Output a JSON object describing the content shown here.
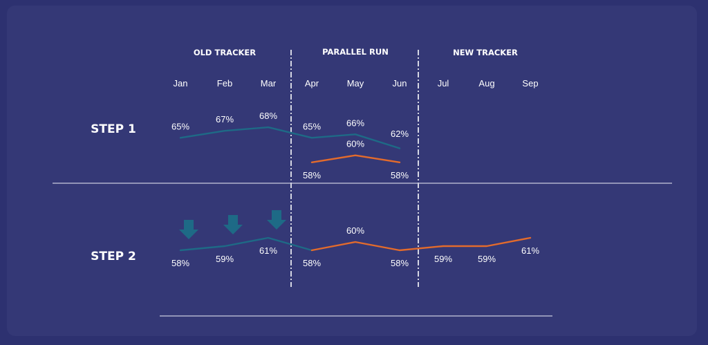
{
  "chart_data": {
    "type": "line",
    "phases": [
      "OLD TRACKER",
      "PARALLEL RUN",
      "NEW TRACKER"
    ],
    "months": [
      "Jan",
      "Feb",
      "Mar",
      "Apr",
      "May",
      "Jun",
      "Jul",
      "Aug",
      "Sep"
    ],
    "steps": [
      {
        "label": "STEP 1",
        "series": [
          {
            "color": "#1e6a86",
            "values": [
              65,
              67,
              68,
              65,
              66,
              62,
              null,
              null,
              null
            ],
            "labels": [
              "65%",
              "67%",
              "68%",
              "65%",
              "66%",
              "62%",
              "",
              "",
              ""
            ]
          },
          {
            "color": "#e36b2c",
            "values": [
              null,
              null,
              null,
              58,
              60,
              58,
              null,
              null,
              null
            ],
            "labels": [
              "",
              "",
              "",
              "58%",
              "60%",
              "58%",
              "",
              "",
              ""
            ]
          }
        ]
      },
      {
        "label": "STEP 2",
        "series": [
          {
            "color": "#1e6a86",
            "values": [
              58,
              59,
              61,
              null,
              null,
              null,
              null,
              null,
              null
            ],
            "labels": [
              "58%",
              "59%",
              "61%",
              "",
              "",
              "",
              "",
              "",
              ""
            ]
          },
          {
            "color": "#e36b2c",
            "values": [
              null,
              null,
              null,
              58,
              60,
              58,
              59,
              59,
              61
            ],
            "labels": [
              "",
              "",
              "",
              "58%",
              "60%",
              "58%",
              "59%",
              "59%",
              "61%"
            ]
          }
        ],
        "adjustment_arrows": [
          "Jan",
          "Feb",
          "Mar"
        ]
      }
    ],
    "colors": {
      "old": "#1e6a86",
      "new": "#e36b2c",
      "background": "#343876",
      "text": "#ffffff"
    }
  }
}
